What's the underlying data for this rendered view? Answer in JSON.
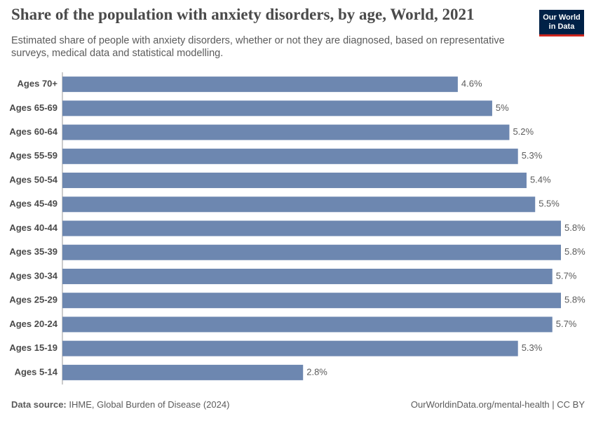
{
  "chart_data": {
    "type": "bar",
    "orientation": "horizontal",
    "title": "Share of the population with anxiety disorders, by age, World, 2021",
    "subtitle": "Estimated share of people with anxiety disorders, whether or not they are diagnosed, based on representative surveys, medical data and statistical modelling.",
    "logo": "Our World in Data",
    "source_label": "Data source:",
    "source": "IHME, Global Burden of Disease (2024)",
    "credit": "OurWorldinData.org/mental-health | CC BY",
    "color": "#6d87b0",
    "categories": [
      "Ages 70+",
      "Ages 65-69",
      "Ages 60-64",
      "Ages 55-59",
      "Ages 50-54",
      "Ages 45-49",
      "Ages 40-44",
      "Ages 35-39",
      "Ages 30-34",
      "Ages 25-29",
      "Ages 20-24",
      "Ages 15-19",
      "Ages 5-14"
    ],
    "values": [
      4.6,
      5,
      5.2,
      5.3,
      5.4,
      5.5,
      5.8,
      5.8,
      5.7,
      5.8,
      5.7,
      5.3,
      2.8
    ],
    "value_labels": [
      "4.6%",
      "5%",
      "5.2%",
      "5.3%",
      "5.4%",
      "5.5%",
      "5.8%",
      "5.8%",
      "5.7%",
      "5.8%",
      "5.7%",
      "5.3%",
      "2.8%"
    ]
  }
}
